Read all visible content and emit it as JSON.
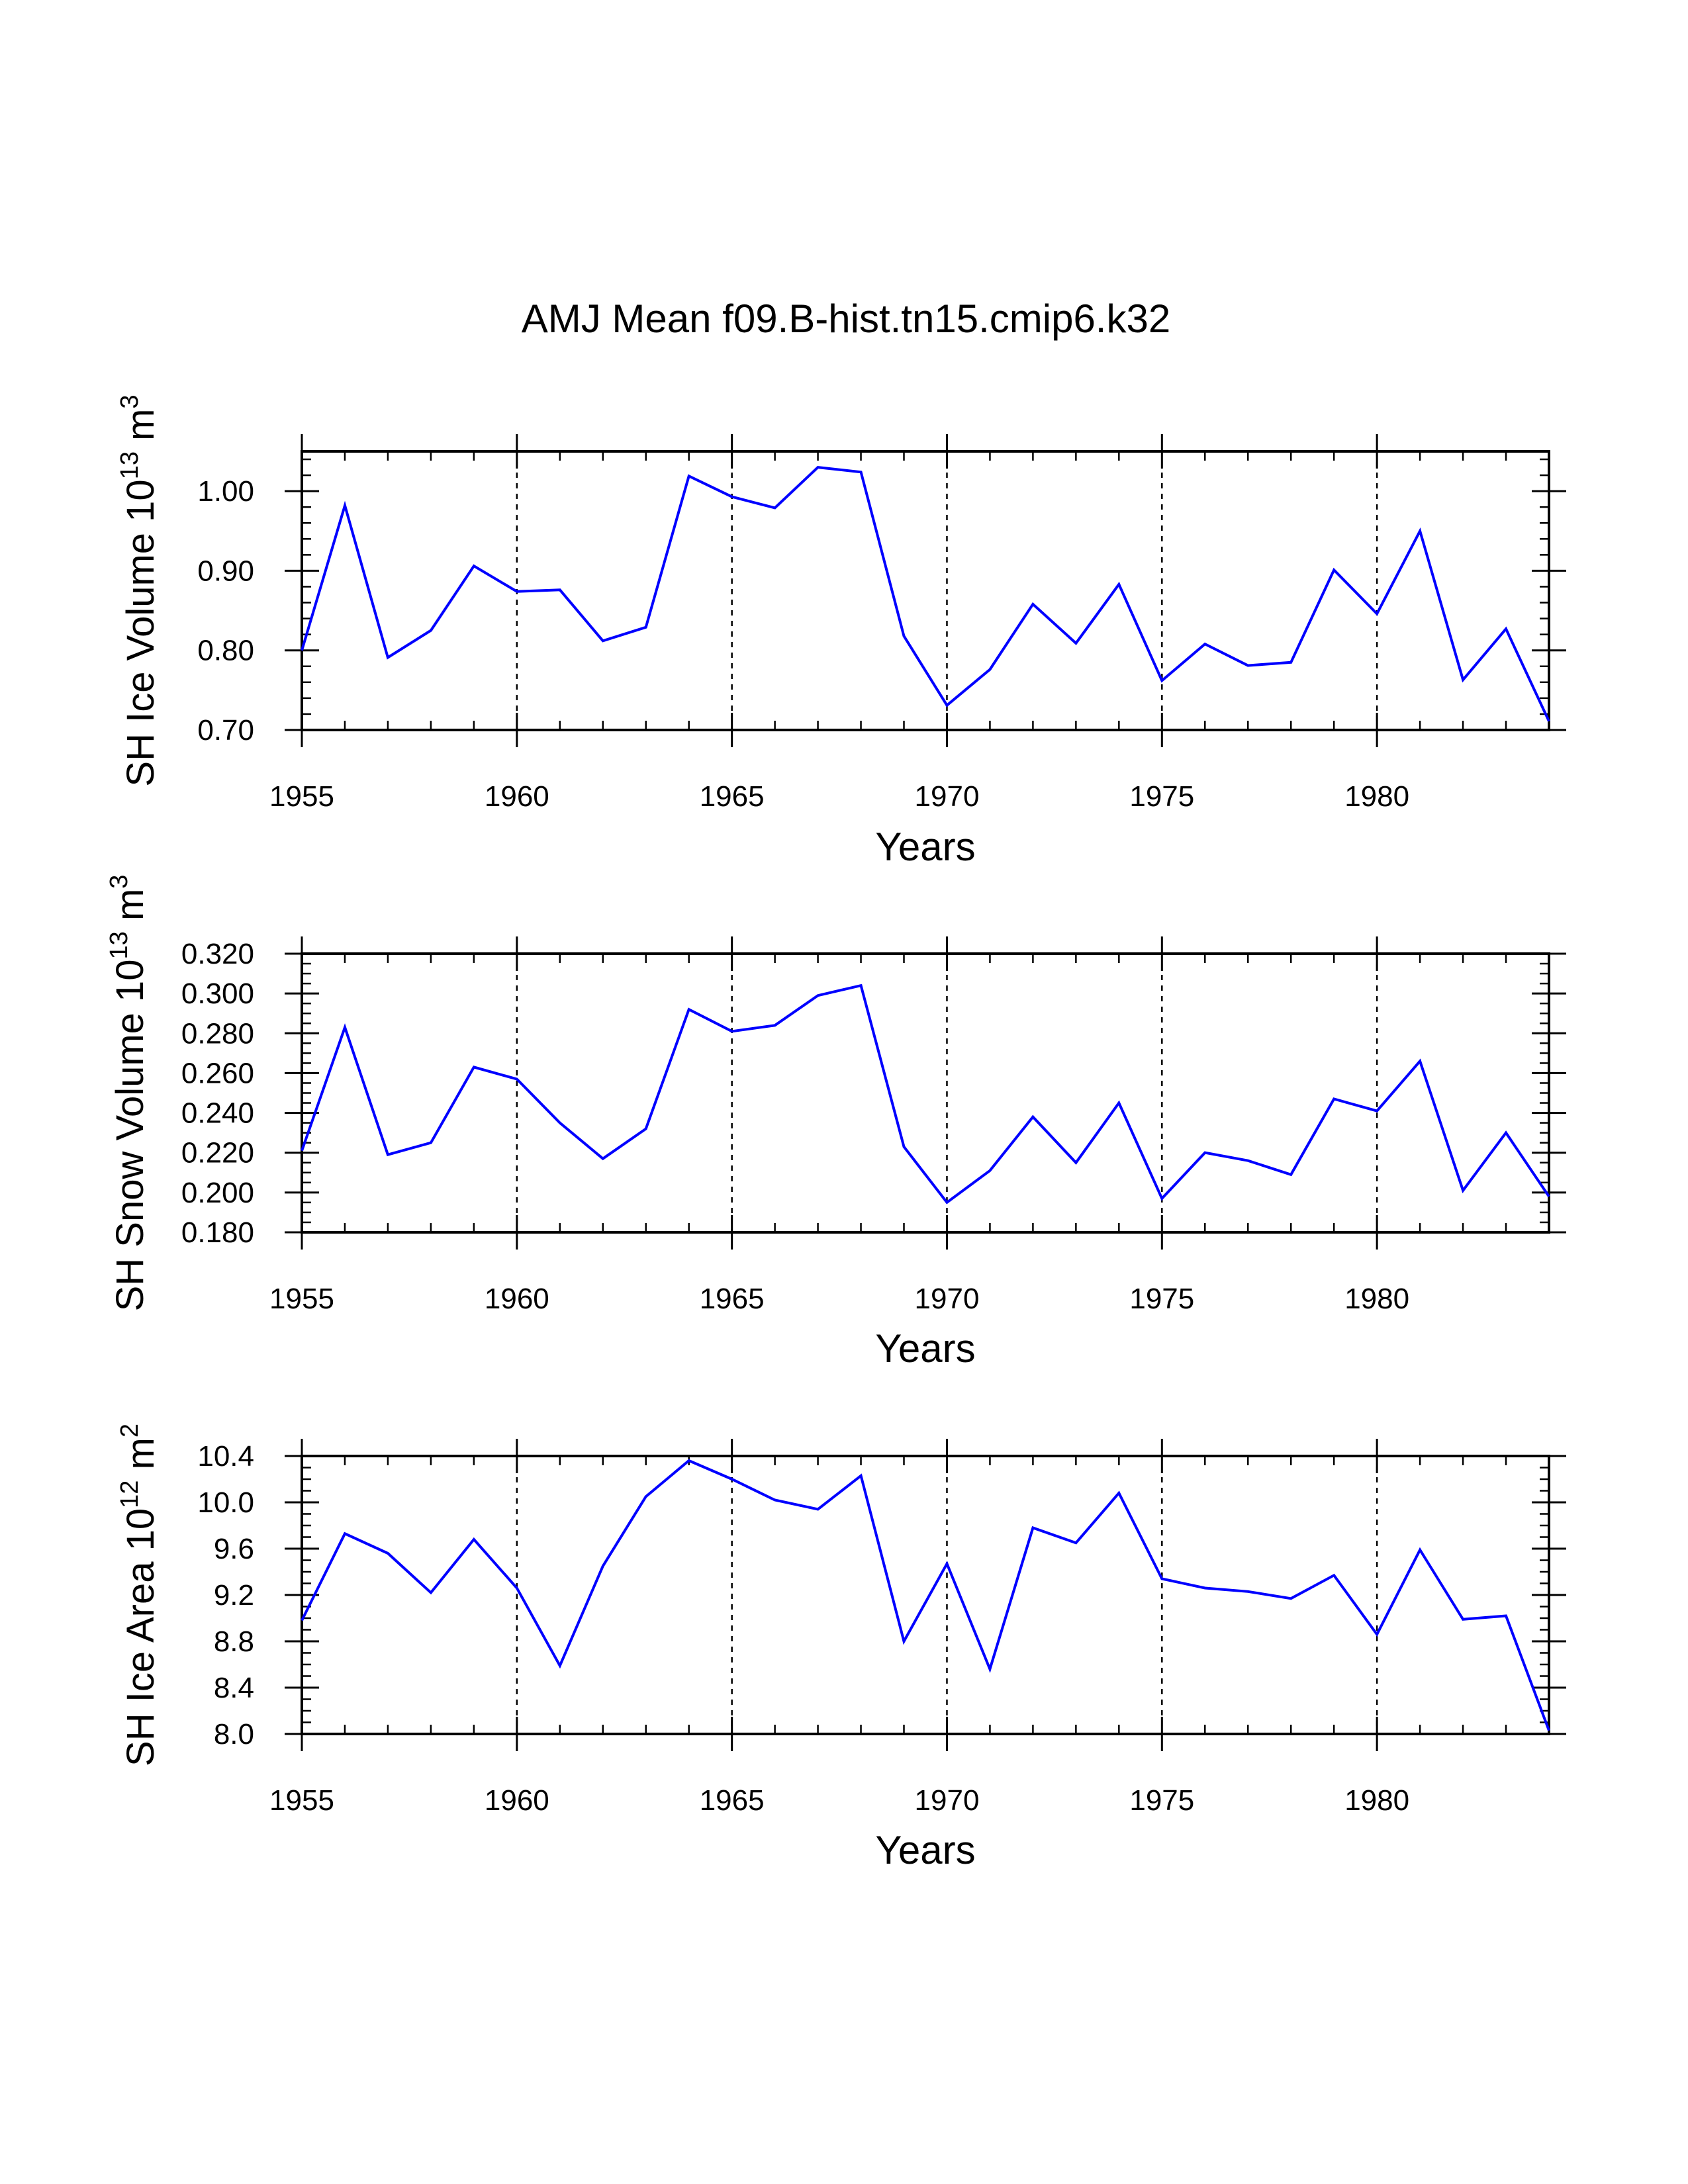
{
  "chart_data": [
    {
      "type": "line",
      "title": "AMJ Mean f09.B-hist.tn15.cmip6.k32",
      "ylabel": {
        "prefix": "SH Ice Volume 10",
        "exp": "13",
        "unit": " m",
        "unit_exp": "3"
      },
      "xlabel": "Years",
      "xlim": [
        1955,
        1984
      ],
      "ylim": [
        0.7,
        1.05
      ],
      "yticks": [
        "0.70",
        "0.80",
        "0.90",
        "1.00"
      ],
      "xticks": [
        "1955",
        "1960",
        "1965",
        "1970",
        "1975",
        "1980"
      ],
      "grid": "vertical dashed at major x ticks",
      "series": [
        {
          "name": "SH Ice Volume",
          "color": "#0000ff",
          "x": [
            1955,
            1956,
            1957,
            1958,
            1959,
            1960,
            1961,
            1962,
            1963,
            1964,
            1965,
            1966,
            1967,
            1968,
            1969,
            1970,
            1971,
            1972,
            1973,
            1974,
            1975,
            1976,
            1977,
            1978,
            1979,
            1980,
            1981,
            1982,
            1983,
            1984
          ],
          "values": [
            0.8,
            0.982,
            0.791,
            0.825,
            0.906,
            0.874,
            0.876,
            0.812,
            0.829,
            1.019,
            0.993,
            0.979,
            1.03,
            1.024,
            0.818,
            0.731,
            0.776,
            0.858,
            0.809,
            0.883,
            0.762,
            0.808,
            0.781,
            0.785,
            0.901,
            0.846,
            0.95,
            0.763,
            0.827,
            0.711
          ]
        }
      ]
    },
    {
      "type": "line",
      "ylabel": {
        "prefix": "SH Snow Volume 10",
        "exp": "13",
        "unit": " m",
        "unit_exp": "3"
      },
      "xlabel": "Years",
      "xlim": [
        1955,
        1984
      ],
      "ylim": [
        0.18,
        0.32
      ],
      "yticks": [
        "0.180",
        "0.200",
        "0.220",
        "0.240",
        "0.260",
        "0.280",
        "0.300",
        "0.320"
      ],
      "xticks": [
        "1955",
        "1960",
        "1965",
        "1970",
        "1975",
        "1980"
      ],
      "grid": "vertical dashed at major x ticks",
      "series": [
        {
          "name": "SH Snow Volume",
          "color": "#0000ff",
          "x": [
            1955,
            1956,
            1957,
            1958,
            1959,
            1960,
            1961,
            1962,
            1963,
            1964,
            1965,
            1966,
            1967,
            1968,
            1969,
            1970,
            1971,
            1972,
            1973,
            1974,
            1975,
            1976,
            1977,
            1978,
            1979,
            1980,
            1981,
            1982,
            1983,
            1984
          ],
          "values": [
            0.221,
            0.283,
            0.219,
            0.225,
            0.263,
            0.257,
            0.235,
            0.217,
            0.232,
            0.292,
            0.281,
            0.284,
            0.299,
            0.304,
            0.223,
            0.195,
            0.211,
            0.238,
            0.215,
            0.245,
            0.197,
            0.22,
            0.216,
            0.209,
            0.247,
            0.241,
            0.266,
            0.201,
            0.23,
            0.198
          ]
        }
      ]
    },
    {
      "type": "line",
      "ylabel": {
        "prefix": "SH Ice Area 10",
        "exp": "12",
        "unit": " m",
        "unit_exp": "2"
      },
      "xlabel": "Years",
      "xlim": [
        1955,
        1984
      ],
      "ylim": [
        8.0,
        10.4
      ],
      "yticks": [
        "8.0",
        "8.4",
        "8.8",
        "9.2",
        "9.6",
        "10.0",
        "10.4"
      ],
      "xticks": [
        "1955",
        "1960",
        "1965",
        "1970",
        "1975",
        "1980"
      ],
      "grid": "vertical dashed at major x ticks",
      "series": [
        {
          "name": "SH Ice Area",
          "color": "#0000ff",
          "x": [
            1955,
            1956,
            1957,
            1958,
            1959,
            1960,
            1961,
            1962,
            1963,
            1964,
            1965,
            1966,
            1967,
            1968,
            1969,
            1970,
            1971,
            1972,
            1973,
            1974,
            1975,
            1976,
            1977,
            1978,
            1979,
            1980,
            1981,
            1982,
            1983,
            1984
          ],
          "values": [
            8.98,
            9.73,
            9.56,
            9.22,
            9.68,
            9.26,
            8.59,
            9.45,
            10.05,
            10.36,
            10.2,
            10.02,
            9.94,
            10.23,
            8.8,
            9.47,
            8.56,
            9.78,
            9.65,
            10.08,
            9.34,
            9.26,
            9.23,
            9.17,
            9.37,
            8.86,
            9.59,
            8.99,
            9.02,
            8.03
          ]
        }
      ]
    }
  ]
}
